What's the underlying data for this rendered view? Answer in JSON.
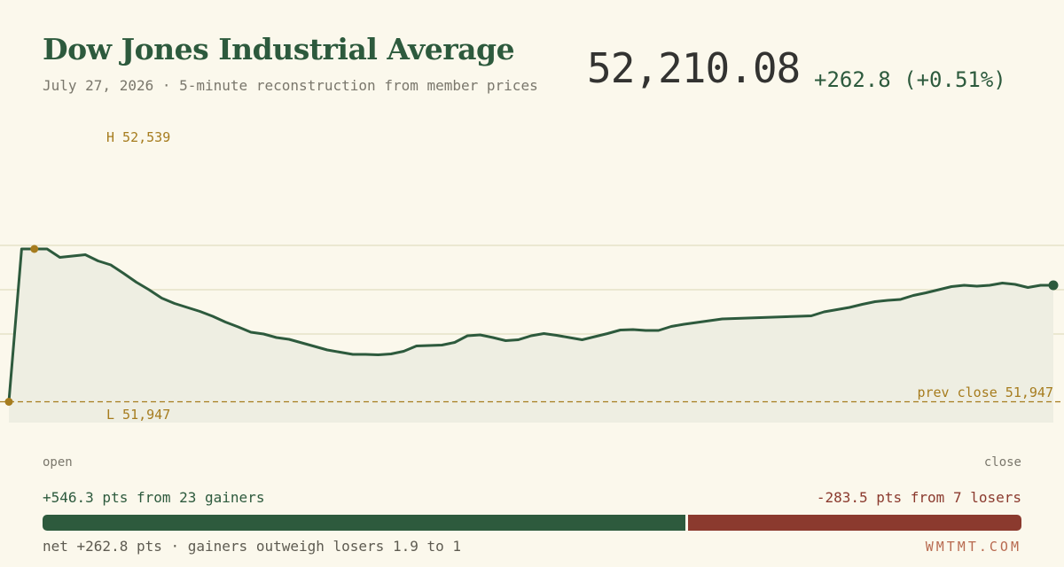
{
  "header": {
    "title": "Dow Jones Industrial Average",
    "subtitle": "July 27, 2026 · 5-minute reconstruction from member prices",
    "price": "52,210.08",
    "change": "+262.8 (+0.51%)"
  },
  "colors": {
    "background": "#fbf8ec",
    "line": "#2d5a3d",
    "area": "#eeeee2",
    "gridline": "#e6e2c8",
    "marker": "#a67c1e",
    "gainers": "#2d5a3d",
    "losers": "#8b3a2e"
  },
  "chart_data": {
    "type": "line",
    "annotations": {
      "high_label": "H 52,539",
      "low_label": "L 51,947",
      "prev_close_label": "prev close 51,947"
    },
    "xlabel_start": "open",
    "xlabel_end": "close",
    "high": 52539,
    "low": 51947,
    "prev_close": 51947,
    "ylim": [
      51900,
      52590
    ],
    "gridlines": [
      52100,
      52200,
      52300
    ],
    "series": [
      {
        "values": [
          51947,
          52292,
          52292,
          52292,
          52273,
          52276,
          52279,
          52265,
          52256,
          52237,
          52217,
          52200,
          52181,
          52169,
          52160,
          52151,
          52140,
          52127,
          52116,
          52104,
          52100,
          52092,
          52088,
          52080,
          52072,
          52064,
          52059,
          52054,
          52054,
          52053,
          52055,
          52061,
          52073,
          52074,
          52075,
          52081,
          52096,
          52098,
          52092,
          52085,
          52087,
          52096,
          52101,
          52097,
          52092,
          52087,
          52094,
          52101,
          52109,
          52110,
          52108,
          52108,
          52117,
          52122,
          52126,
          52130,
          52134,
          52135,
          52136,
          52137,
          52138,
          52139,
          52140,
          52141,
          52150,
          52155,
          52160,
          52167,
          52173,
          52176,
          52178,
          52187,
          52193,
          52200,
          52207,
          52210,
          52208,
          52210,
          52215,
          52212,
          52205,
          52210,
          52210.08
        ]
      }
    ]
  },
  "breadth": {
    "gainers_text": "+546.3 pts from 23 gainers",
    "losers_text": "-283.5 pts from 7 losers",
    "gainers_pts": 546.3,
    "losers_pts": 283.5,
    "net_text": "net +262.8 pts · gainers outweigh losers 1.9 to 1"
  },
  "brand": "WMTMT.COM"
}
